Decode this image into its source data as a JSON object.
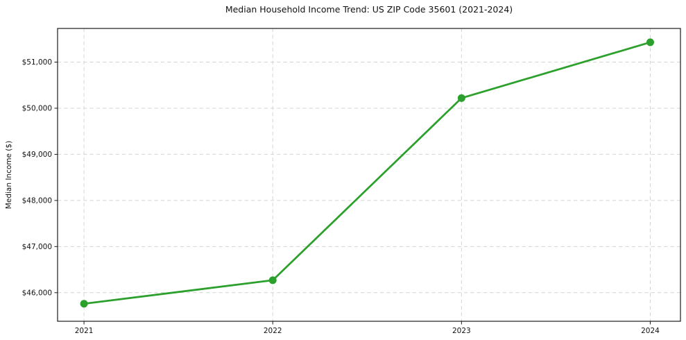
{
  "chart_data": {
    "type": "line",
    "title": "Median Household Income Trend: US ZIP Code 35601 (2021-2024)",
    "xlabel": "",
    "ylabel": "Median Income ($)",
    "x": [
      2021,
      2022,
      2023,
      2024
    ],
    "x_tick_labels": [
      "2021",
      "2022",
      "2023",
      "2024"
    ],
    "values": [
      45760,
      46270,
      50220,
      51430
    ],
    "y_ticks": [
      46000,
      47000,
      48000,
      49000,
      50000,
      51000
    ],
    "y_tick_labels": [
      "$46,000",
      "$47,000",
      "$48,000",
      "$49,000",
      "$50,000",
      "$51,000"
    ],
    "xlim": [
      2020.86,
      2024.16
    ],
    "ylim": [
      45380,
      51730
    ],
    "grid": {
      "visible": true,
      "style": "dashed"
    },
    "legend_position": "none",
    "marker": "circle",
    "colors": {
      "line": "#2ca02c",
      "marker": "#2ca02c",
      "grid": "#d4d4d4",
      "spine": "#1a1a1a",
      "text": "#111111",
      "background": "#ffffff"
    }
  }
}
